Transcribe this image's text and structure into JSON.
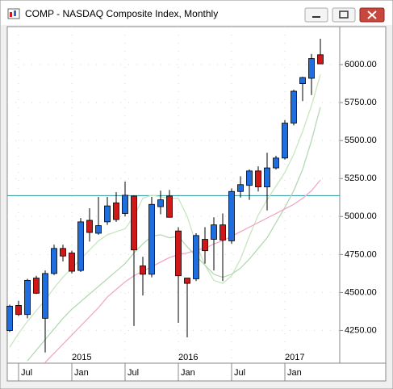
{
  "window_title": "COMP - NASDAQ Composite Index, Monthly",
  "chart_data": {
    "type": "candlestick",
    "categories": [
      null,
      "Jul",
      null,
      null,
      null,
      null,
      null,
      "Jan",
      null,
      null,
      null,
      null,
      null,
      "Jul",
      null,
      null,
      null,
      null,
      null,
      "Jan",
      null,
      null,
      null,
      null,
      null,
      "Jul",
      null,
      null,
      null,
      null,
      null,
      "Jan",
      null,
      null,
      null,
      null
    ],
    "years": [
      null,
      null,
      null,
      null,
      null,
      null,
      null,
      "2015",
      null,
      null,
      null,
      null,
      null,
      null,
      null,
      null,
      null,
      null,
      null,
      "2016",
      null,
      null,
      null,
      null,
      null,
      null,
      null,
      null,
      null,
      null,
      null,
      "2017",
      null,
      null,
      null,
      null
    ],
    "open": [
      4250,
      4415,
      4355,
      4595,
      4330,
      4625,
      4790,
      4760,
      4645,
      4975,
      4890,
      4965,
      5090,
      5020,
      5135,
      4675,
      4620,
      5065,
      5135,
      4905,
      4595,
      4590,
      4850,
      4850,
      4945,
      4840,
      5165,
      5205,
      5300,
      5195,
      5320,
      5385,
      5615,
      5875,
      5910,
      6065
    ],
    "high": [
      4420,
      4445,
      4590,
      4610,
      4645,
      4815,
      4815,
      4775,
      4990,
      5055,
      5130,
      5130,
      5160,
      5230,
      5140,
      4735,
      5130,
      5170,
      5175,
      4930,
      4595,
      4890,
      4930,
      4995,
      5020,
      5185,
      5265,
      5310,
      5330,
      5420,
      5400,
      5635,
      5835,
      5920,
      6070,
      6170
    ],
    "low": [
      4240,
      4345,
      4330,
      4490,
      4105,
      4615,
      4705,
      4625,
      4635,
      4835,
      4880,
      4945,
      4965,
      5000,
      4280,
      4480,
      4600,
      5015,
      4995,
      4300,
      4205,
      4575,
      4690,
      4645,
      4575,
      4820,
      5125,
      5110,
      5165,
      5040,
      5310,
      5375,
      5600,
      5760,
      5800,
      6005
    ],
    "close": [
      4410,
      4355,
      4580,
      4495,
      4625,
      4790,
      4740,
      4640,
      4965,
      4895,
      4940,
      5070,
      4980,
      5140,
      4780,
      4620,
      5080,
      5110,
      4995,
      4610,
      4560,
      4875,
      4775,
      4945,
      4845,
      5165,
      5210,
      5300,
      5195,
      5320,
      5385,
      5615,
      5825,
      5915,
      6040,
      6005
    ],
    "up_color": "#1e6ee0",
    "down_color": "#d01818",
    "series": [
      {
        "color": "#c8e6c0",
        "values": [
          4140,
          4230,
          4310,
          4380,
          4450,
          4530,
          4600,
          4660,
          4720,
          4780,
          4840,
          4880,
          4900,
          4920,
          5000,
          5120,
          5140,
          5130,
          5120,
          5120,
          5000,
          4820,
          4680,
          4580,
          4560,
          4610,
          4720,
          4870,
          5010,
          5110,
          5200,
          5290,
          5410,
          5560,
          5730,
          5935
        ]
      },
      {
        "color": "#b4d8b4",
        "values": [
          null,
          null,
          4050,
          4120,
          4190,
          4260,
          4330,
          4390,
          4440,
          4490,
          4540,
          4590,
          4640,
          4690,
          4760,
          4820,
          4870,
          4880,
          4860,
          4870,
          4800,
          4740,
          4680,
          4620,
          4600,
          4620,
          4660,
          4720,
          4790,
          4860,
          4960,
          5060,
          5170,
          5310,
          5500,
          5720
        ]
      },
      {
        "color": "#f0a8c8",
        "values": [
          null,
          null,
          null,
          null,
          4040,
          4100,
          4160,
          4220,
          4280,
          4340,
          4400,
          4470,
          4520,
          4570,
          4610,
          4640,
          4670,
          4700,
          4730,
          4750,
          4760,
          4780,
          4790,
          4820,
          4840,
          4870,
          4900,
          4930,
          4960,
          4990,
          5020,
          5050,
          5080,
          5120,
          5170,
          5240
        ]
      }
    ],
    "horizontal_line": {
      "value": 5138,
      "color": "#2a9aa0"
    },
    "ylim": [
      4040,
      6250
    ],
    "yticks": [
      {
        "value": 4250,
        "label": "4250.00"
      },
      {
        "value": 4500,
        "label": "4500.00"
      },
      {
        "value": 4750,
        "label": "4750.00"
      },
      {
        "value": 5000,
        "label": "5000.00"
      },
      {
        "value": 5250,
        "label": "5250.00"
      },
      {
        "value": 5500,
        "label": "5500.00"
      },
      {
        "value": 5750,
        "label": "5750.00"
      },
      {
        "value": 6000,
        "label": "6000.00"
      }
    ],
    "grid": true
  }
}
